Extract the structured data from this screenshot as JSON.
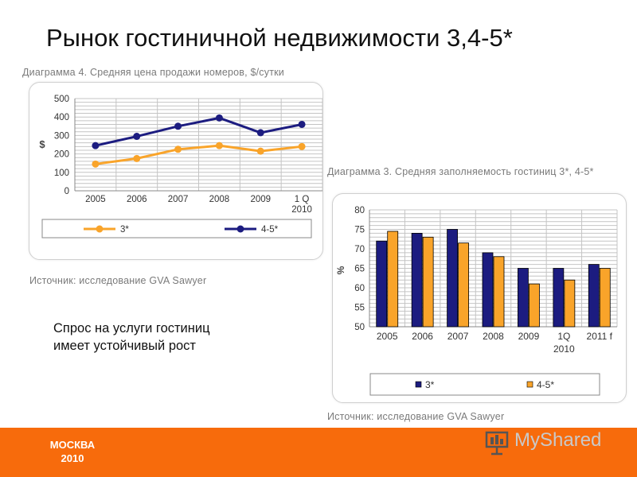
{
  "slide": {
    "title": "Рынок гостиничной недвижимости 3,4-5*",
    "note_line1": "Спрос на услуги гостиниц",
    "note_line2": "имеет устойчивый рост",
    "footer_city": "МОСКВА",
    "footer_year": "2010",
    "logo_text": "MyShared",
    "colors": {
      "footer": "#f76b0c",
      "navy": "#1c1c80",
      "orange": "#f9a42a"
    }
  },
  "chart4": {
    "caption": "Диаграмма 4. Средняя цена продажи номеров, $/сутки",
    "source": "Источник: исследование GVA Sawyer"
  },
  "chart3": {
    "caption": "Диаграмма 3. Средняя заполняемость гостиниц 3*, 4-5*",
    "source": "Источник: исследование GVA Sawyer"
  },
  "chart_data": [
    {
      "type": "line",
      "title": "Диаграмма 4. Средняя цена продажи номеров, $/сутки",
      "categories": [
        "2005",
        "2006",
        "2007",
        "2008",
        "2009",
        "1 Q 2010"
      ],
      "category_lines": [
        [
          "2005"
        ],
        [
          "2006"
        ],
        [
          "2007"
        ],
        [
          "2008"
        ],
        [
          "2009"
        ],
        [
          "1 Q",
          "2010"
        ]
      ],
      "series": [
        {
          "name": "3*",
          "color": "#f9a42a",
          "values": [
            145,
            175,
            225,
            245,
            215,
            240
          ]
        },
        {
          "name": "4-5*",
          "color": "#1c1c80",
          "values": [
            245,
            295,
            350,
            395,
            315,
            360
          ]
        }
      ],
      "ylabel": "$",
      "ylim": [
        0,
        500
      ],
      "yticks": [
        0,
        100,
        200,
        300,
        400,
        500
      ],
      "grid": true,
      "legend": "bottom"
    },
    {
      "type": "bar",
      "title": "Диаграмма 3. Средняя заполняемость гостиниц 3*, 4-5*",
      "categories": [
        "2005",
        "2006",
        "2007",
        "2008",
        "2009",
        "1Q 2010",
        "2011 f"
      ],
      "category_lines": [
        [
          "2005"
        ],
        [
          "2006"
        ],
        [
          "2007"
        ],
        [
          "2008"
        ],
        [
          "2009"
        ],
        [
          "1Q",
          "2010"
        ],
        [
          "2011 f"
        ]
      ],
      "series": [
        {
          "name": "3*",
          "color": "#1c1c80",
          "values": [
            72,
            74,
            75,
            69,
            65,
            65,
            66
          ]
        },
        {
          "name": "4-5*",
          "color": "#f9a42a",
          "values": [
            74.5,
            73,
            71.5,
            68,
            61,
            62,
            65
          ]
        }
      ],
      "ylabel": "%",
      "ylim": [
        50,
        80
      ],
      "yticks": [
        50,
        55,
        60,
        65,
        70,
        75,
        80
      ],
      "grid": true,
      "legend": "bottom"
    }
  ]
}
